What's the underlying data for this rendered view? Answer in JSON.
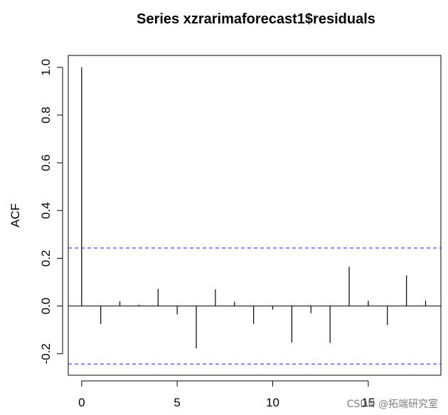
{
  "chart_data": {
    "type": "bar",
    "title": "Series  xzrarimaforecast1$residuals",
    "xlabel": "",
    "ylabel": "ACF",
    "xlim": [
      -0.7,
      18.8
    ],
    "ylim": [
      -0.29,
      1.05
    ],
    "x_ticks": [
      0,
      5,
      10,
      15
    ],
    "y_ticks": [
      -0.2,
      0.0,
      0.2,
      0.4,
      0.6,
      0.8,
      1.0
    ],
    "y_tick_labels": [
      "-0.2",
      "0.0",
      "0.2",
      "0.4",
      "0.6",
      "0.8",
      "1.0"
    ],
    "x": [
      0,
      1,
      2,
      3,
      4,
      5,
      6,
      7,
      8,
      9,
      10,
      11,
      12,
      13,
      14,
      15,
      16,
      17,
      18
    ],
    "values": [
      1.0,
      -0.075,
      0.02,
      0.005,
      0.072,
      -0.035,
      -0.178,
      0.07,
      0.018,
      -0.075,
      -0.015,
      -0.153,
      -0.03,
      -0.155,
      0.165,
      0.022,
      -0.08,
      0.128,
      0.022
    ],
    "confidence_limits": [
      0.243,
      -0.243
    ],
    "confidence_line_color": "#1a1aff",
    "bar_color": "#000000",
    "grid": false,
    "legend": "none"
  },
  "watermark": {
    "text": "CSDN @拓端研究室"
  }
}
